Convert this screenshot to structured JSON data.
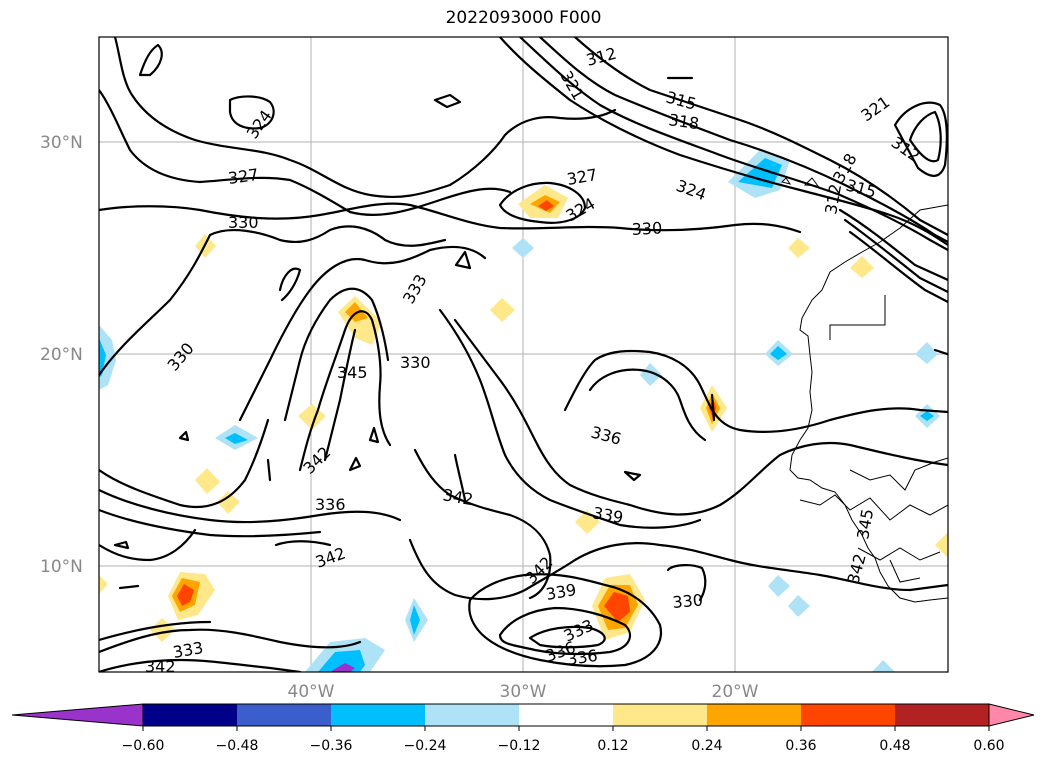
{
  "title": "2022093000 F000",
  "lat_labels": [
    "30°N",
    "20°N",
    "10°N"
  ],
  "lon_labels": [
    "40°W",
    "30°W",
    "20°W"
  ],
  "contour_labels": [
    "312",
    "321",
    "315",
    "318",
    "324",
    "327",
    "330",
    "324",
    "327",
    "324",
    "330",
    "321",
    "312",
    "318",
    "315",
    "312",
    "333",
    "345",
    "330",
    "330",
    "336",
    "342",
    "336",
    "342",
    "342",
    "339",
    "342",
    "339",
    "330",
    "333",
    "336",
    "336",
    "333",
    "342",
    "345",
    "342"
  ],
  "colorbar": {
    "ticks": [
      "−0.60",
      "−0.48",
      "−0.36",
      "−0.24",
      "−0.12",
      "0.12",
      "0.24",
      "0.36",
      "0.48",
      "0.60"
    ],
    "colors": [
      "#9933cc",
      "#000088",
      "#3a5fcd",
      "#00bfff",
      "#aee2f7",
      "#ffffff",
      "#ffe88a",
      "#ffa500",
      "#ff4500",
      "#b22222",
      "#ff88aa"
    ]
  }
}
